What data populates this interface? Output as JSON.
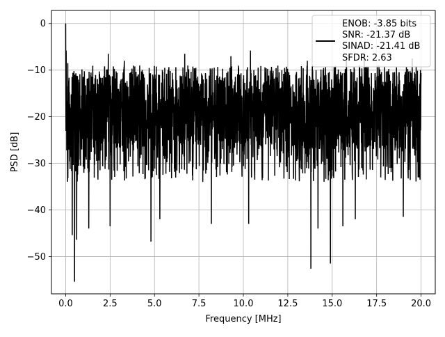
{
  "chart_data": {
    "type": "line",
    "title": "",
    "xlabel": "Frequency [MHz]",
    "ylabel": "PSD [dB]",
    "xlim": [
      -0.8,
      20.8
    ],
    "ylim": [
      -58,
      2.8
    ],
    "grid": true,
    "legend_position": "top-right",
    "x_ticks": [
      {
        "value": 0.0,
        "label": "0.0"
      },
      {
        "value": 2.5,
        "label": "2.5"
      },
      {
        "value": 5.0,
        "label": "5.0"
      },
      {
        "value": 7.5,
        "label": "7.5"
      },
      {
        "value": 10.0,
        "label": "10.0"
      },
      {
        "value": 12.5,
        "label": "12.5"
      },
      {
        "value": 15.0,
        "label": "15.0"
      },
      {
        "value": 17.5,
        "label": "17.5"
      },
      {
        "value": 20.0,
        "label": "20.0"
      }
    ],
    "y_ticks": [
      {
        "value": 0,
        "label": "0"
      },
      {
        "value": -10,
        "label": "−10"
      },
      {
        "value": -20,
        "label": "−20"
      },
      {
        "value": -30,
        "label": "−30"
      },
      {
        "value": -40,
        "label": "−40"
      },
      {
        "value": -50,
        "label": "−50"
      }
    ],
    "series": [
      {
        "color": "#000000",
        "x_start": 0.0,
        "x_end": 20.0,
        "peak": {
          "x": 0.0,
          "y": 0.0
        },
        "band_top": -12.0,
        "band_bottom": -27.0,
        "max_spurs": [
          {
            "x": 0.03,
            "y": -5.8
          },
          {
            "x": 0.12,
            "y": -8.5
          },
          {
            "x": 2.4,
            "y": -6.5
          },
          {
            "x": 3.3,
            "y": -8.0
          },
          {
            "x": 6.7,
            "y": -6.5
          },
          {
            "x": 9.3,
            "y": -7.0
          },
          {
            "x": 10.4,
            "y": -5.8
          },
          {
            "x": 13.6,
            "y": -8.0
          },
          {
            "x": 15.8,
            "y": -8.0
          },
          {
            "x": 16.8,
            "y": -6.5
          },
          {
            "x": 19.5,
            "y": -7.5
          }
        ],
        "min_spurs": [
          {
            "x": 0.37,
            "y": -45.4
          },
          {
            "x": 0.5,
            "y": -55.4
          },
          {
            "x": 0.62,
            "y": -46.4
          },
          {
            "x": 1.3,
            "y": -44.0
          },
          {
            "x": 2.5,
            "y": -43.5
          },
          {
            "x": 4.8,
            "y": -46.8
          },
          {
            "x": 5.3,
            "y": -42.0
          },
          {
            "x": 8.2,
            "y": -43.0
          },
          {
            "x": 10.3,
            "y": -43.0
          },
          {
            "x": 13.8,
            "y": -52.6
          },
          {
            "x": 14.2,
            "y": -44.0
          },
          {
            "x": 14.9,
            "y": -51.5
          },
          {
            "x": 15.6,
            "y": -43.5
          },
          {
            "x": 16.3,
            "y": -42.0
          },
          {
            "x": 19.0,
            "y": -41.5
          }
        ]
      }
    ],
    "legend": [
      "ENOB: -3.85 bits",
      "SNR: -21.37 dB",
      "SINAD: -21.41 dB",
      "SFDR: 2.63"
    ]
  }
}
